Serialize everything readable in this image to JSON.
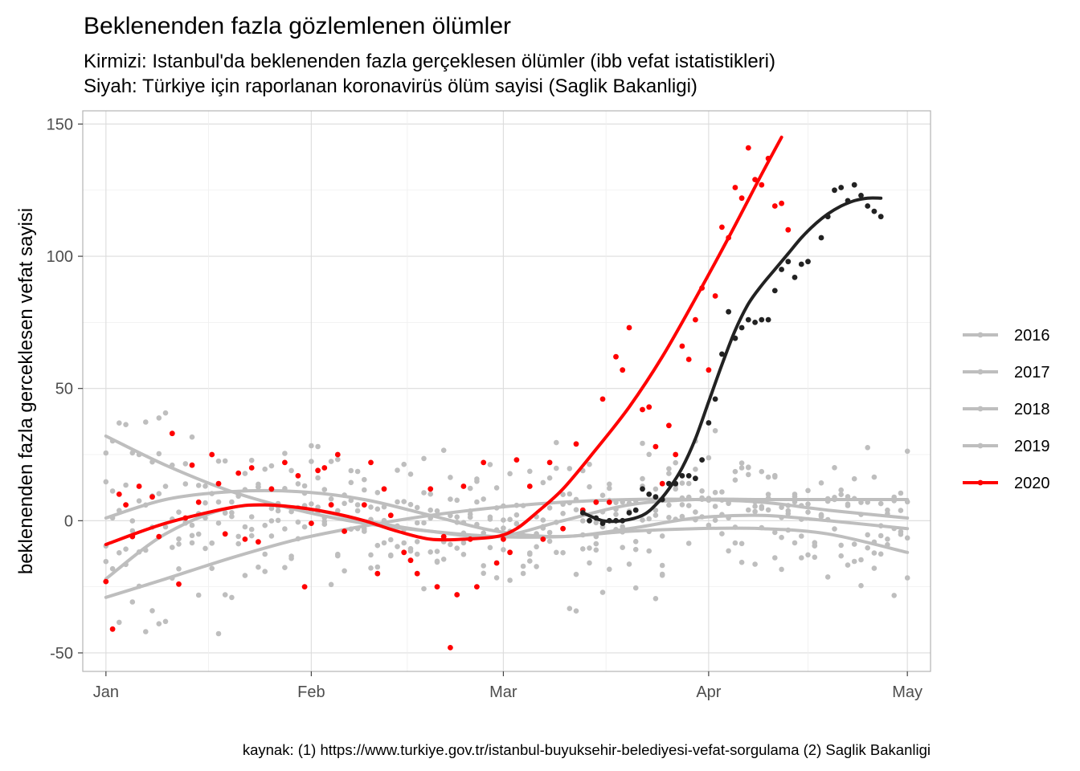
{
  "chart_data": {
    "type": "scatter",
    "title": "Beklenenden fazla gözlemlenen ölümler",
    "subtitle_lines": [
      "Kirmizi: Istanbul'da beklenenden fazla gerçeklesen ölümler (ibb vefat istatistikleri)",
      "Siyah: Türkiye için raporlanan koronavirüs ölüm sayisi (Saglik Bakanligi)"
    ],
    "xlabel": "",
    "ylabel": "beklenenden fazla gerceklesen vefat sayisi",
    "caption": "kaynak: (1) https://www.turkiye.gov.tr/istanbul-buyuksehir-belediyesi-vefat-sorgulama (2) Saglik Bakanligi",
    "x_axis": {
      "unit": "day of year",
      "range": [
        -2.5,
        125.5
      ],
      "ticks": [
        {
          "label": "Jan",
          "value": 1
        },
        {
          "label": "Feb",
          "value": 32
        },
        {
          "label": "Mar",
          "value": 61
        },
        {
          "label": "Apr",
          "value": 92
        },
        {
          "label": "May",
          "value": 122
        }
      ]
    },
    "y_axis": {
      "range": [
        -57,
        155
      ],
      "ticks": [
        -50,
        0,
        50,
        100,
        150
      ]
    },
    "grid": true,
    "legend_position": "right",
    "colors": {
      "background_series": "#bebebe",
      "highlight_2020": "#ff0000",
      "turkiye_covid": "#222222",
      "grid": "#e5e5e5",
      "panel_border": "#b3b3b3"
    },
    "legend": [
      {
        "label": "2016",
        "color": "#bebebe"
      },
      {
        "label": "2017",
        "color": "#bebebe"
      },
      {
        "label": "2018",
        "color": "#bebebe"
      },
      {
        "label": "2019",
        "color": "#bebebe"
      },
      {
        "label": "2020",
        "color": "#ff0000"
      }
    ],
    "series": [
      {
        "name": "2016",
        "color": "#bebebe",
        "smooth_x": [
          1,
          10,
          20,
          30,
          40,
          50,
          60,
          70,
          80,
          90,
          100,
          110,
          122
        ],
        "smooth_y": [
          32,
          21,
          11,
          4,
          -1,
          -4,
          -6,
          -6,
          -4,
          -3,
          -3,
          -5,
          -12
        ]
      },
      {
        "name": "2017",
        "color": "#bebebe",
        "smooth_x": [
          1,
          10,
          20,
          30,
          40,
          50,
          60,
          70,
          80,
          90,
          100,
          110,
          122
        ],
        "smooth_y": [
          -29,
          -22,
          -14,
          -7,
          -2,
          2,
          5,
          7,
          8,
          8,
          7,
          4,
          1
        ]
      },
      {
        "name": "2018",
        "color": "#bebebe",
        "smooth_x": [
          1,
          10,
          20,
          30,
          40,
          50,
          60,
          70,
          80,
          90,
          100,
          110,
          122
        ],
        "smooth_y": [
          1,
          8,
          11,
          11,
          8,
          2,
          -4,
          -6,
          -3,
          1,
          2,
          0,
          -3
        ]
      },
      {
        "name": "2019",
        "color": "#bebebe",
        "smooth_x": [
          1,
          10,
          20,
          30,
          40,
          50,
          60,
          70,
          80,
          90,
          100,
          110,
          122
        ],
        "smooth_y": [
          -22,
          -5,
          5,
          5,
          0,
          -4,
          -6,
          0,
          6,
          8,
          8,
          8,
          8
        ]
      },
      {
        "name": "2020",
        "color": "#ff0000",
        "smooth_x": [
          1,
          10,
          20,
          25,
          30,
          35,
          40,
          45,
          50,
          55,
          60,
          63,
          66,
          70,
          75,
          80,
          85,
          90,
          95,
          100,
          103
        ],
        "smooth_y": [
          -9,
          -1,
          5,
          6,
          5,
          3,
          0,
          -4,
          -7,
          -7,
          -6,
          -3,
          3,
          12,
          27,
          43,
          62,
          84,
          107,
          131,
          145
        ],
        "points": [
          {
            "x": 1,
            "y": -23
          },
          {
            "x": 2,
            "y": -41
          },
          {
            "x": 3,
            "y": 10
          },
          {
            "x": 4,
            "y": 6
          },
          {
            "x": 5,
            "y": -6
          },
          {
            "x": 6,
            "y": 13
          },
          {
            "x": 8,
            "y": 9
          },
          {
            "x": 9,
            "y": -6
          },
          {
            "x": 11,
            "y": 33
          },
          {
            "x": 12,
            "y": -24
          },
          {
            "x": 13,
            "y": 1
          },
          {
            "x": 14,
            "y": 21
          },
          {
            "x": 15,
            "y": 7
          },
          {
            "x": 17,
            "y": 25
          },
          {
            "x": 18,
            "y": 14
          },
          {
            "x": 19,
            "y": -5
          },
          {
            "x": 21,
            "y": 18
          },
          {
            "x": 22,
            "y": -7
          },
          {
            "x": 23,
            "y": 20
          },
          {
            "x": 24,
            "y": -8
          },
          {
            "x": 26,
            "y": 12
          },
          {
            "x": 28,
            "y": 22
          },
          {
            "x": 30,
            "y": 17
          },
          {
            "x": 31,
            "y": -25
          },
          {
            "x": 32,
            "y": -1
          },
          {
            "x": 33,
            "y": 19
          },
          {
            "x": 34,
            "y": 20
          },
          {
            "x": 35,
            "y": 6
          },
          {
            "x": 36,
            "y": 25
          },
          {
            "x": 37,
            "y": -4
          },
          {
            "x": 40,
            "y": 6
          },
          {
            "x": 41,
            "y": 22
          },
          {
            "x": 42,
            "y": -20
          },
          {
            "x": 43,
            "y": 12
          },
          {
            "x": 44,
            "y": 2
          },
          {
            "x": 46,
            "y": -12
          },
          {
            "x": 47,
            "y": -15
          },
          {
            "x": 48,
            "y": -20
          },
          {
            "x": 50,
            "y": 12
          },
          {
            "x": 51,
            "y": -25
          },
          {
            "x": 52,
            "y": -6
          },
          {
            "x": 53,
            "y": -48
          },
          {
            "x": 54,
            "y": -28
          },
          {
            "x": 55,
            "y": 13
          },
          {
            "x": 56,
            "y": -7
          },
          {
            "x": 57,
            "y": -25
          },
          {
            "x": 58,
            "y": 22
          },
          {
            "x": 60,
            "y": -16
          },
          {
            "x": 61,
            "y": -7
          },
          {
            "x": 62,
            "y": -12
          },
          {
            "x": 63,
            "y": 23
          },
          {
            "x": 65,
            "y": 13
          },
          {
            "x": 67,
            "y": -7
          },
          {
            "x": 68,
            "y": 22
          },
          {
            "x": 70,
            "y": -3
          },
          {
            "x": 72,
            "y": 29
          },
          {
            "x": 73,
            "y": 4
          },
          {
            "x": 75,
            "y": 7
          },
          {
            "x": 76,
            "y": 46
          },
          {
            "x": 77,
            "y": 7
          },
          {
            "x": 78,
            "y": 62
          },
          {
            "x": 79,
            "y": 57
          },
          {
            "x": 80,
            "y": 73
          },
          {
            "x": 82,
            "y": 42
          },
          {
            "x": 83,
            "y": 43
          },
          {
            "x": 84,
            "y": 28
          },
          {
            "x": 85,
            "y": 14
          },
          {
            "x": 86,
            "y": 36
          },
          {
            "x": 87,
            "y": 25
          },
          {
            "x": 88,
            "y": 66
          },
          {
            "x": 89,
            "y": 61
          },
          {
            "x": 90,
            "y": 76
          },
          {
            "x": 91,
            "y": 88
          },
          {
            "x": 92,
            "y": 57
          },
          {
            "x": 93,
            "y": 85
          },
          {
            "x": 94,
            "y": 111
          },
          {
            "x": 95,
            "y": 107
          },
          {
            "x": 96,
            "y": 126
          },
          {
            "x": 97,
            "y": 122
          },
          {
            "x": 98,
            "y": 141
          },
          {
            "x": 99,
            "y": 129
          },
          {
            "x": 100,
            "y": 127
          },
          {
            "x": 101,
            "y": 137
          },
          {
            "x": 102,
            "y": 119
          },
          {
            "x": 103,
            "y": 120
          },
          {
            "x": 104,
            "y": 110
          }
        ]
      },
      {
        "color": "#222222",
        "smooth_x": [
          73,
          76,
          79,
          82,
          84,
          86,
          88,
          90,
          92,
          94,
          96,
          98,
          100,
          102,
          104,
          106,
          108,
          110,
          112,
          114,
          116,
          118
        ],
        "smooth_y": [
          3,
          0,
          0,
          2,
          6,
          12,
          20,
          31,
          45,
          59,
          72,
          82,
          89,
          95,
          101,
          107,
          112,
          116,
          119,
          121,
          122,
          122
        ],
        "points": [
          {
            "x": 73,
            "y": 3
          },
          {
            "x": 74,
            "y": 0
          },
          {
            "x": 75,
            "y": 1
          },
          {
            "x": 76,
            "y": -1
          },
          {
            "x": 77,
            "y": 0
          },
          {
            "x": 78,
            "y": 0
          },
          {
            "x": 79,
            "y": 0
          },
          {
            "x": 80,
            "y": 3
          },
          {
            "x": 81,
            "y": 4
          },
          {
            "x": 82,
            "y": 12
          },
          {
            "x": 83,
            "y": 10
          },
          {
            "x": 84,
            "y": 9
          },
          {
            "x": 85,
            "y": 8
          },
          {
            "x": 86,
            "y": 14
          },
          {
            "x": 87,
            "y": 14
          },
          {
            "x": 88,
            "y": 17
          },
          {
            "x": 89,
            "y": 17
          },
          {
            "x": 90,
            "y": 16
          },
          {
            "x": 91,
            "y": 23
          },
          {
            "x": 92,
            "y": 37
          },
          {
            "x": 93,
            "y": 46
          },
          {
            "x": 94,
            "y": 63
          },
          {
            "x": 95,
            "y": 79
          },
          {
            "x": 96,
            "y": 69
          },
          {
            "x": 97,
            "y": 73
          },
          {
            "x": 98,
            "y": 76
          },
          {
            "x": 99,
            "y": 75
          },
          {
            "x": 100,
            "y": 76
          },
          {
            "x": 101,
            "y": 76
          },
          {
            "x": 102,
            "y": 87
          },
          {
            "x": 103,
            "y": 95
          },
          {
            "x": 104,
            "y": 98
          },
          {
            "x": 105,
            "y": 92
          },
          {
            "x": 106,
            "y": 97
          },
          {
            "x": 107,
            "y": 98
          },
          {
            "x": 109,
            "y": 107
          },
          {
            "x": 110,
            "y": 115
          },
          {
            "x": 111,
            "y": 125
          },
          {
            "x": 112,
            "y": 126
          },
          {
            "x": 113,
            "y": 121
          },
          {
            "x": 114,
            "y": 127
          },
          {
            "x": 115,
            "y": 123
          },
          {
            "x": 116,
            "y": 119
          },
          {
            "x": 117,
            "y": 117
          },
          {
            "x": 118,
            "y": 115
          }
        ]
      }
    ]
  }
}
